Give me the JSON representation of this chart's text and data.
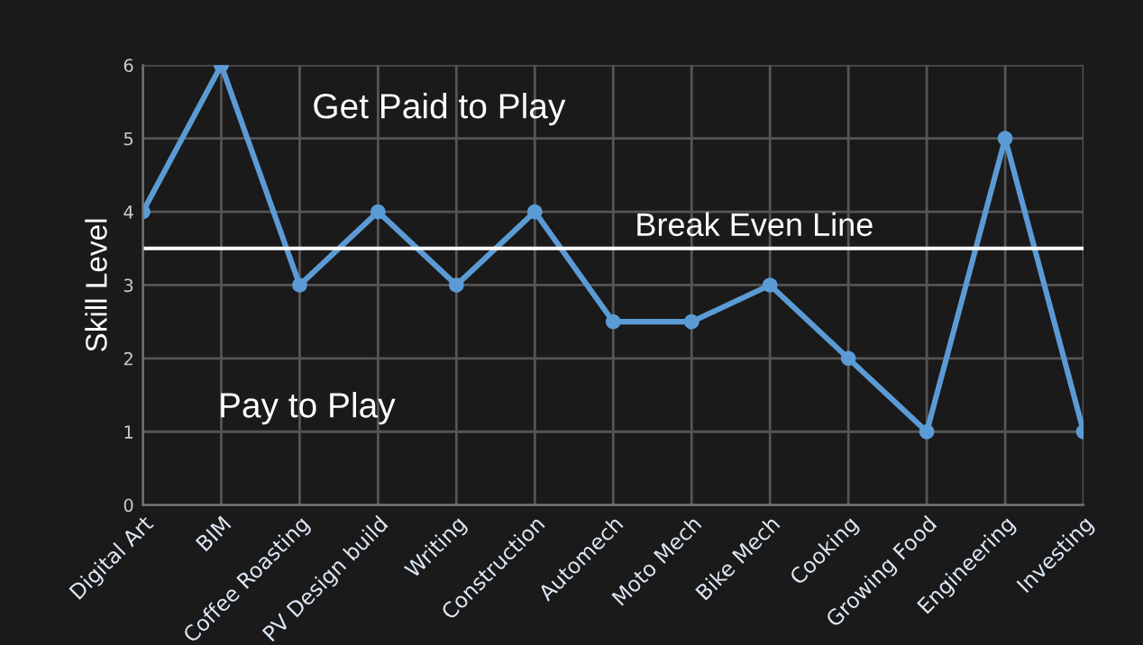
{
  "chart_data": {
    "type": "line",
    "ylabel": "Skill Level",
    "categories": [
      "Digital Art",
      "BIM",
      "Coffee Roasting",
      "PV Design build",
      "Writing",
      "Construction",
      "Automech",
      "Moto Mech",
      "Bike Mech",
      "Cooking",
      "Growing Food",
      "Engineering",
      "Investing"
    ],
    "series": [
      {
        "color": "#5b9bd5",
        "values": [
          4,
          6,
          3,
          4,
          3,
          4,
          2.5,
          2.5,
          3,
          2,
          1,
          5,
          1
        ]
      }
    ],
    "ylim": [
      0,
      6
    ],
    "yticks": [
      0,
      1,
      2,
      3,
      4,
      5,
      6
    ],
    "grid": true,
    "marker": "circle",
    "line_style": "solid",
    "ref_lines": [
      {
        "axis": "y",
        "value": 3.5,
        "label": "Break Even Line",
        "color": "#ffffff"
      }
    ],
    "annotations": [
      "Get Paid to Play",
      "Pay to Play"
    ]
  }
}
